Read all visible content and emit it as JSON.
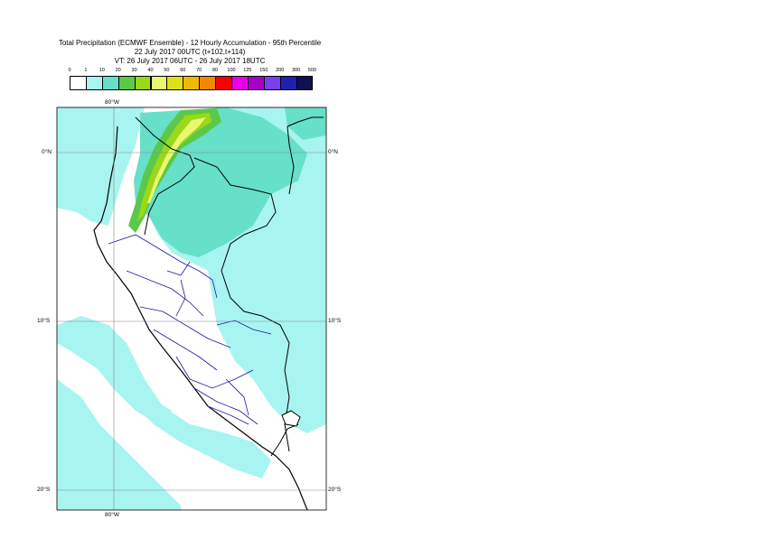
{
  "title": {
    "line1": "Total Precipitation (ECMWF Ensemble) - 12 Hourly Accumulation - 95th Percentile",
    "line2": "22 July 2017 00UTC (t+102,t+114)",
    "line3": "VT: 26 July 2017 06UTC - 26 July 2017 18UTC"
  },
  "legend": {
    "levels": [
      "0",
      "1",
      "10",
      "20",
      "30",
      "40",
      "50",
      "60",
      "70",
      "80",
      "100",
      "125",
      "150",
      "200",
      "300",
      "500"
    ],
    "colors": [
      "#ffffff",
      "#a8f4f0",
      "#66e0c8",
      "#5cc84a",
      "#9ad818",
      "#e8f870",
      "#e0e018",
      "#f0b800",
      "#f08800",
      "#f80000",
      "#e800e8",
      "#a800c8",
      "#7840f0",
      "#2020b0",
      "#101050"
    ]
  },
  "axes": {
    "top_lon_label": "80°W",
    "bottom_lon_label": "80°W",
    "lat_labels": [
      "0°N",
      "10°S",
      "20°S"
    ]
  }
}
